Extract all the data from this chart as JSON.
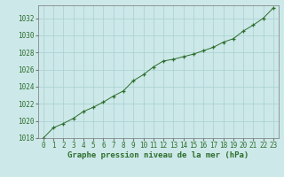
{
  "x": [
    0,
    1,
    2,
    3,
    4,
    5,
    6,
    7,
    8,
    9,
    10,
    11,
    12,
    13,
    14,
    15,
    16,
    17,
    18,
    19,
    20,
    21,
    22,
    23
  ],
  "y": [
    1018.0,
    1019.2,
    1019.7,
    1020.3,
    1021.1,
    1021.6,
    1022.2,
    1022.9,
    1023.5,
    1024.7,
    1025.4,
    1026.3,
    1027.0,
    1027.2,
    1027.5,
    1027.8,
    1028.2,
    1028.6,
    1029.2,
    1029.6,
    1030.5,
    1031.2,
    1032.0,
    1033.2
  ],
  "ylim": [
    1018,
    1033.5
  ],
  "yticks": [
    1018,
    1020,
    1022,
    1024,
    1026,
    1028,
    1030,
    1032
  ],
  "xticks": [
    0,
    1,
    2,
    3,
    4,
    5,
    6,
    7,
    8,
    9,
    10,
    11,
    12,
    13,
    14,
    15,
    16,
    17,
    18,
    19,
    20,
    21,
    22,
    23
  ],
  "xlabel": "Graphe pression niveau de la mer (hPa)",
  "line_color": "#2d6e2d",
  "marker_color": "#2d6e2d",
  "bg_color": "#cce8e8",
  "grid_color": "#a8d0d0",
  "tick_label_color": "#2d6e2d",
  "xlabel_color": "#2d6e2d",
  "xlabel_fontsize": 6.5,
  "tick_fontsize": 5.5
}
